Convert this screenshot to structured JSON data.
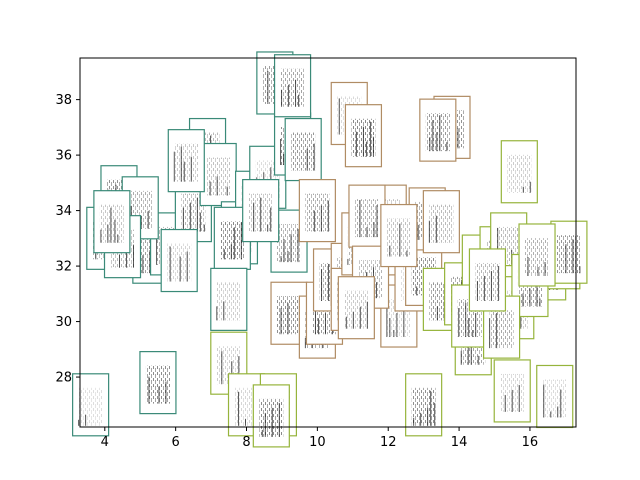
{
  "chart_data": {
    "type": "scatter",
    "title": "",
    "xlabel": "",
    "ylabel": "",
    "xlim": [
      3.3,
      17.3
    ],
    "ylim": [
      26.2,
      39.5
    ],
    "xticks": [
      4,
      6,
      8,
      10,
      12,
      14,
      16
    ],
    "yticks": [
      28,
      30,
      32,
      34,
      36,
      38
    ],
    "grid": false,
    "legend": "none",
    "marker": "image thumbnail (spectrogram) with colored border",
    "colors": {
      "teal": "#3a8a78",
      "tan": "#b08c64",
      "olive": "#96b43c"
    },
    "series": [
      {
        "color_key": "teal",
        "points": [
          [
            3.6,
            27.0
          ],
          [
            5.5,
            27.8
          ],
          [
            4.4,
            34.5
          ],
          [
            4.9,
            33.2
          ],
          [
            5.3,
            32.5
          ],
          [
            5.8,
            32.8
          ],
          [
            5.0,
            34.1
          ],
          [
            6.5,
            34.0
          ],
          [
            6.9,
            36.2
          ],
          [
            7.2,
            35.3
          ],
          [
            6.3,
            35.8
          ],
          [
            7.8,
            33.2
          ],
          [
            8.2,
            34.3
          ],
          [
            8.6,
            35.2
          ],
          [
            7.6,
            33.0
          ],
          [
            9.3,
            36.4
          ],
          [
            9.6,
            36.2
          ],
          [
            8.8,
            38.6
          ],
          [
            9.3,
            38.5
          ],
          [
            9.2,
            32.9
          ],
          [
            4.0,
            33.0
          ],
          [
            4.5,
            32.7
          ],
          [
            8.4,
            34.0
          ],
          [
            4.2,
            33.6
          ],
          [
            7.5,
            30.8
          ],
          [
            6.1,
            32.2
          ]
        ]
      },
      {
        "color_key": "tan",
        "points": [
          [
            10.9,
            37.5
          ],
          [
            11.3,
            36.7
          ],
          [
            9.2,
            30.3
          ],
          [
            10.0,
            29.8
          ],
          [
            10.2,
            30.3
          ],
          [
            10.4,
            31.5
          ],
          [
            10.9,
            31.7
          ],
          [
            10.9,
            30.8
          ],
          [
            11.2,
            32.8
          ],
          [
            11.7,
            32.4
          ],
          [
            12.0,
            33.8
          ],
          [
            12.3,
            32.8
          ],
          [
            12.9,
            32.2
          ],
          [
            12.3,
            30.2
          ],
          [
            12.7,
            31.5
          ],
          [
            13.0,
            31.7
          ],
          [
            13.8,
            37.0
          ],
          [
            13.4,
            36.9
          ],
          [
            13.1,
            33.7
          ],
          [
            10.0,
            34.0
          ],
          [
            11.4,
            33.8
          ],
          [
            11.5,
            31.6
          ],
          [
            13.5,
            33.6
          ],
          [
            12.3,
            33.1
          ],
          [
            11.1,
            30.5
          ]
        ]
      },
      {
        "color_key": "olive",
        "points": [
          [
            7.5,
            28.5
          ],
          [
            8.0,
            27.0
          ],
          [
            8.9,
            27.0
          ],
          [
            8.7,
            26.6
          ],
          [
            13.0,
            27.0
          ],
          [
            13.5,
            30.8
          ],
          [
            14.1,
            31.0
          ],
          [
            14.4,
            29.2
          ],
          [
            14.6,
            32.0
          ],
          [
            15.1,
            32.3
          ],
          [
            15.4,
            32.8
          ],
          [
            15.0,
            30.9
          ],
          [
            15.6,
            30.5
          ],
          [
            15.7,
            35.4
          ],
          [
            15.5,
            27.5
          ],
          [
            16.7,
            27.3
          ],
          [
            16.5,
            31.9
          ],
          [
            16.9,
            32.3
          ],
          [
            17.1,
            32.5
          ],
          [
            16.0,
            31.3
          ],
          [
            14.3,
            30.2
          ],
          [
            15.2,
            29.8
          ],
          [
            16.2,
            32.4
          ],
          [
            14.8,
            31.5
          ]
        ]
      }
    ]
  }
}
